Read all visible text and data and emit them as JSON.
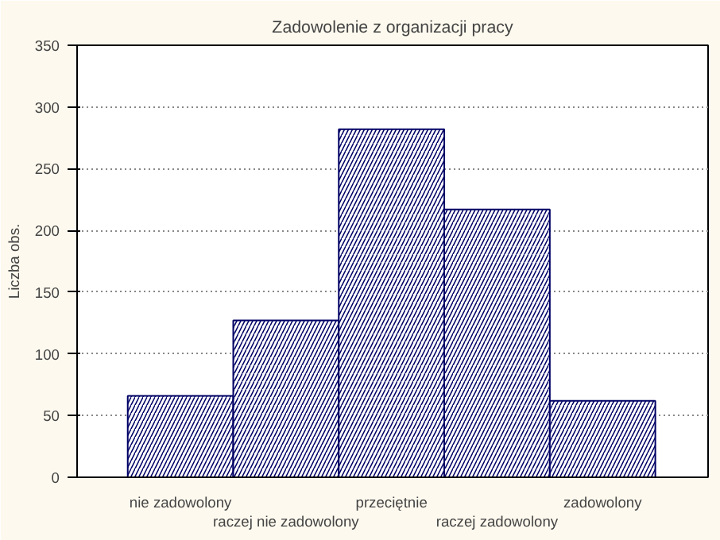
{
  "chart_data": {
    "type": "bar",
    "title": "Zadowolenie z organizacji pracy",
    "ylabel": "Liczba obs.",
    "categories": [
      "nie zadowolony",
      "raczej nie zadowolony",
      "przeciętnie",
      "raczej zadowolony",
      "zadowolony"
    ],
    "values": [
      66,
      127,
      282,
      217,
      62
    ],
    "color": "#000066",
    "ylim": [
      0,
      350
    ],
    "yticks": [
      0,
      50,
      100,
      150,
      200,
      250,
      300,
      350
    ],
    "grid": "y"
  }
}
